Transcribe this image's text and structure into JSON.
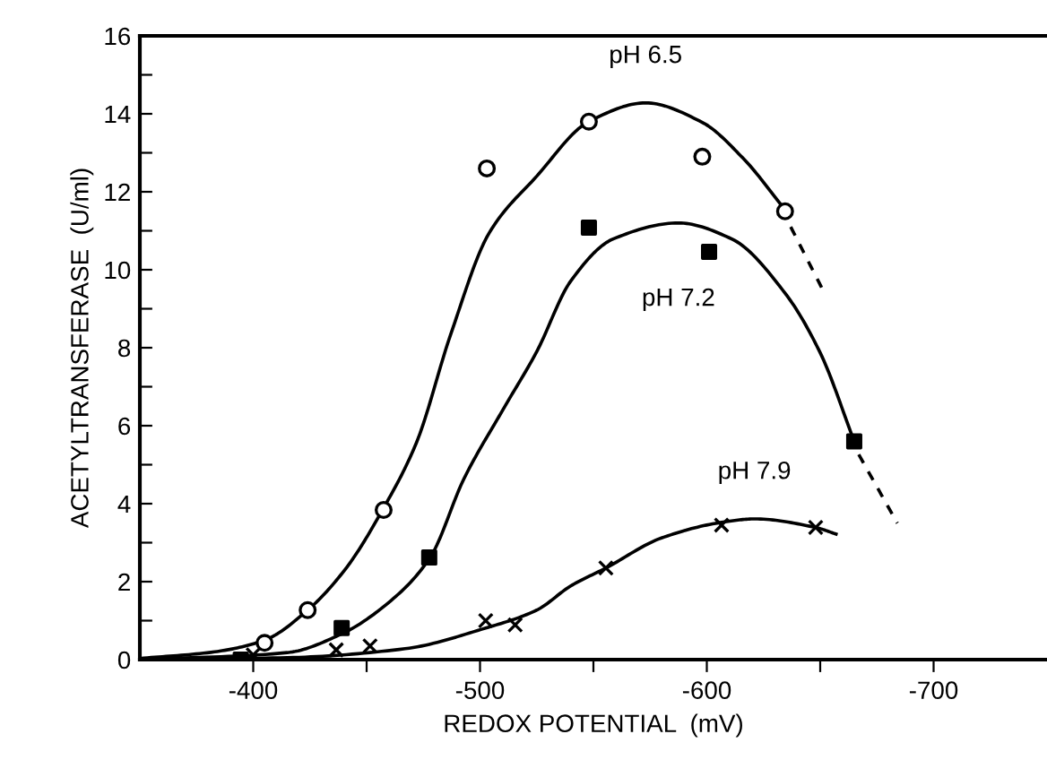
{
  "chart_data": {
    "type": "scatter",
    "xlabel": "REDOX POTENTIAL  (mV)",
    "ylabel": "ACETYLTRANSFERASE  (U/ml)",
    "xlim": [
      -350,
      -750
    ],
    "xticks": [
      -400,
      {
        "value": -450,
        "label": null
      },
      -500,
      {
        "value": -550,
        "label": null
      },
      -600,
      {
        "value": -650,
        "label": null
      },
      -700
    ],
    "ylim": [
      0,
      16
    ],
    "yticks": [
      0,
      {
        "value": 1,
        "label": null
      },
      2,
      {
        "value": 3,
        "label": null
      },
      4,
      {
        "value": 5,
        "label": null
      },
      6,
      {
        "value": 7,
        "label": null
      },
      8,
      {
        "value": 9,
        "label": null
      },
      10,
      {
        "value": 11,
        "label": null
      },
      12,
      {
        "value": 13,
        "label": null
      },
      14,
      {
        "value": 15,
        "label": null
      },
      16
    ],
    "grid": false,
    "legend": false,
    "series": [
      {
        "marker": "circle",
        "color": "#000000",
        "x": [
          -405,
          -424,
          -457.5,
          -503,
          -548,
          -598,
          -634.5
        ],
        "values": [
          0.43,
          1.27,
          3.84,
          12.6,
          13.8,
          12.9,
          11.5
        ]
      },
      {
        "marker": "square",
        "color": "#000000",
        "x": [
          -394.5,
          -439,
          -477.6,
          -548,
          -601,
          -665
        ],
        "values": [
          0,
          0.81,
          2.62,
          11.08,
          10.46,
          5.6
        ]
      },
      {
        "marker": "cross",
        "color": "#000000",
        "x": [
          -400,
          -436.6,
          -451.5,
          -502.5,
          -515.5,
          -555.5,
          -606.5,
          -648
        ],
        "values": [
          0.12,
          0.25,
          0.35,
          1.0,
          0.89,
          2.35,
          3.45,
          3.39
        ]
      },
      {
        "type": "line",
        "name": "pH 6.5",
        "line_style": "solid",
        "color": "#000000",
        "x": [
          -350,
          -383,
          -405,
          -424,
          -441,
          -457,
          -472,
          -487,
          -504,
          -525,
          -548,
          -573,
          -598,
          -616,
          -635
        ],
        "values": [
          0.03,
          0.2,
          0.5,
          1.27,
          2.35,
          3.84,
          5.57,
          8.33,
          10.94,
          12.4,
          13.8,
          14.28,
          13.78,
          12.86,
          11.5
        ]
      },
      {
        "type": "line",
        "line_style": "dashed",
        "color": "#000000",
        "x": [
          -637,
          -651
        ],
        "values": [
          11.1,
          9.5
        ]
      },
      {
        "type": "line",
        "name": "pH 7.2",
        "line_style": "solid",
        "color": "#000000",
        "x": [
          -350,
          -415,
          -439,
          -459,
          -478,
          -493,
          -510,
          -525,
          -540,
          -558.7,
          -587.5,
          -611,
          -634.5,
          -650,
          -665
        ],
        "values": [
          0,
          0.18,
          0.66,
          1.43,
          2.62,
          4.65,
          6.4,
          7.9,
          9.71,
          10.79,
          11.2,
          10.79,
          9.4,
          7.87,
          5.6
        ]
      },
      {
        "type": "line",
        "line_style": "dashed",
        "color": "#000000",
        "x": [
          -667,
          -684
        ],
        "values": [
          5.26,
          3.5
        ]
      },
      {
        "type": "line",
        "name": "pH 7.9",
        "line_style": "solid",
        "color": "#000000",
        "x": [
          -350,
          -415,
          -467,
          -502.5,
          -525,
          -540,
          -555.5,
          -580,
          -606.5,
          -621,
          -648,
          -657
        ],
        "values": [
          0,
          0.05,
          0.28,
          0.81,
          1.27,
          1.89,
          2.35,
          3.12,
          3.52,
          3.61,
          3.39,
          3.22
        ]
      }
    ]
  }
}
